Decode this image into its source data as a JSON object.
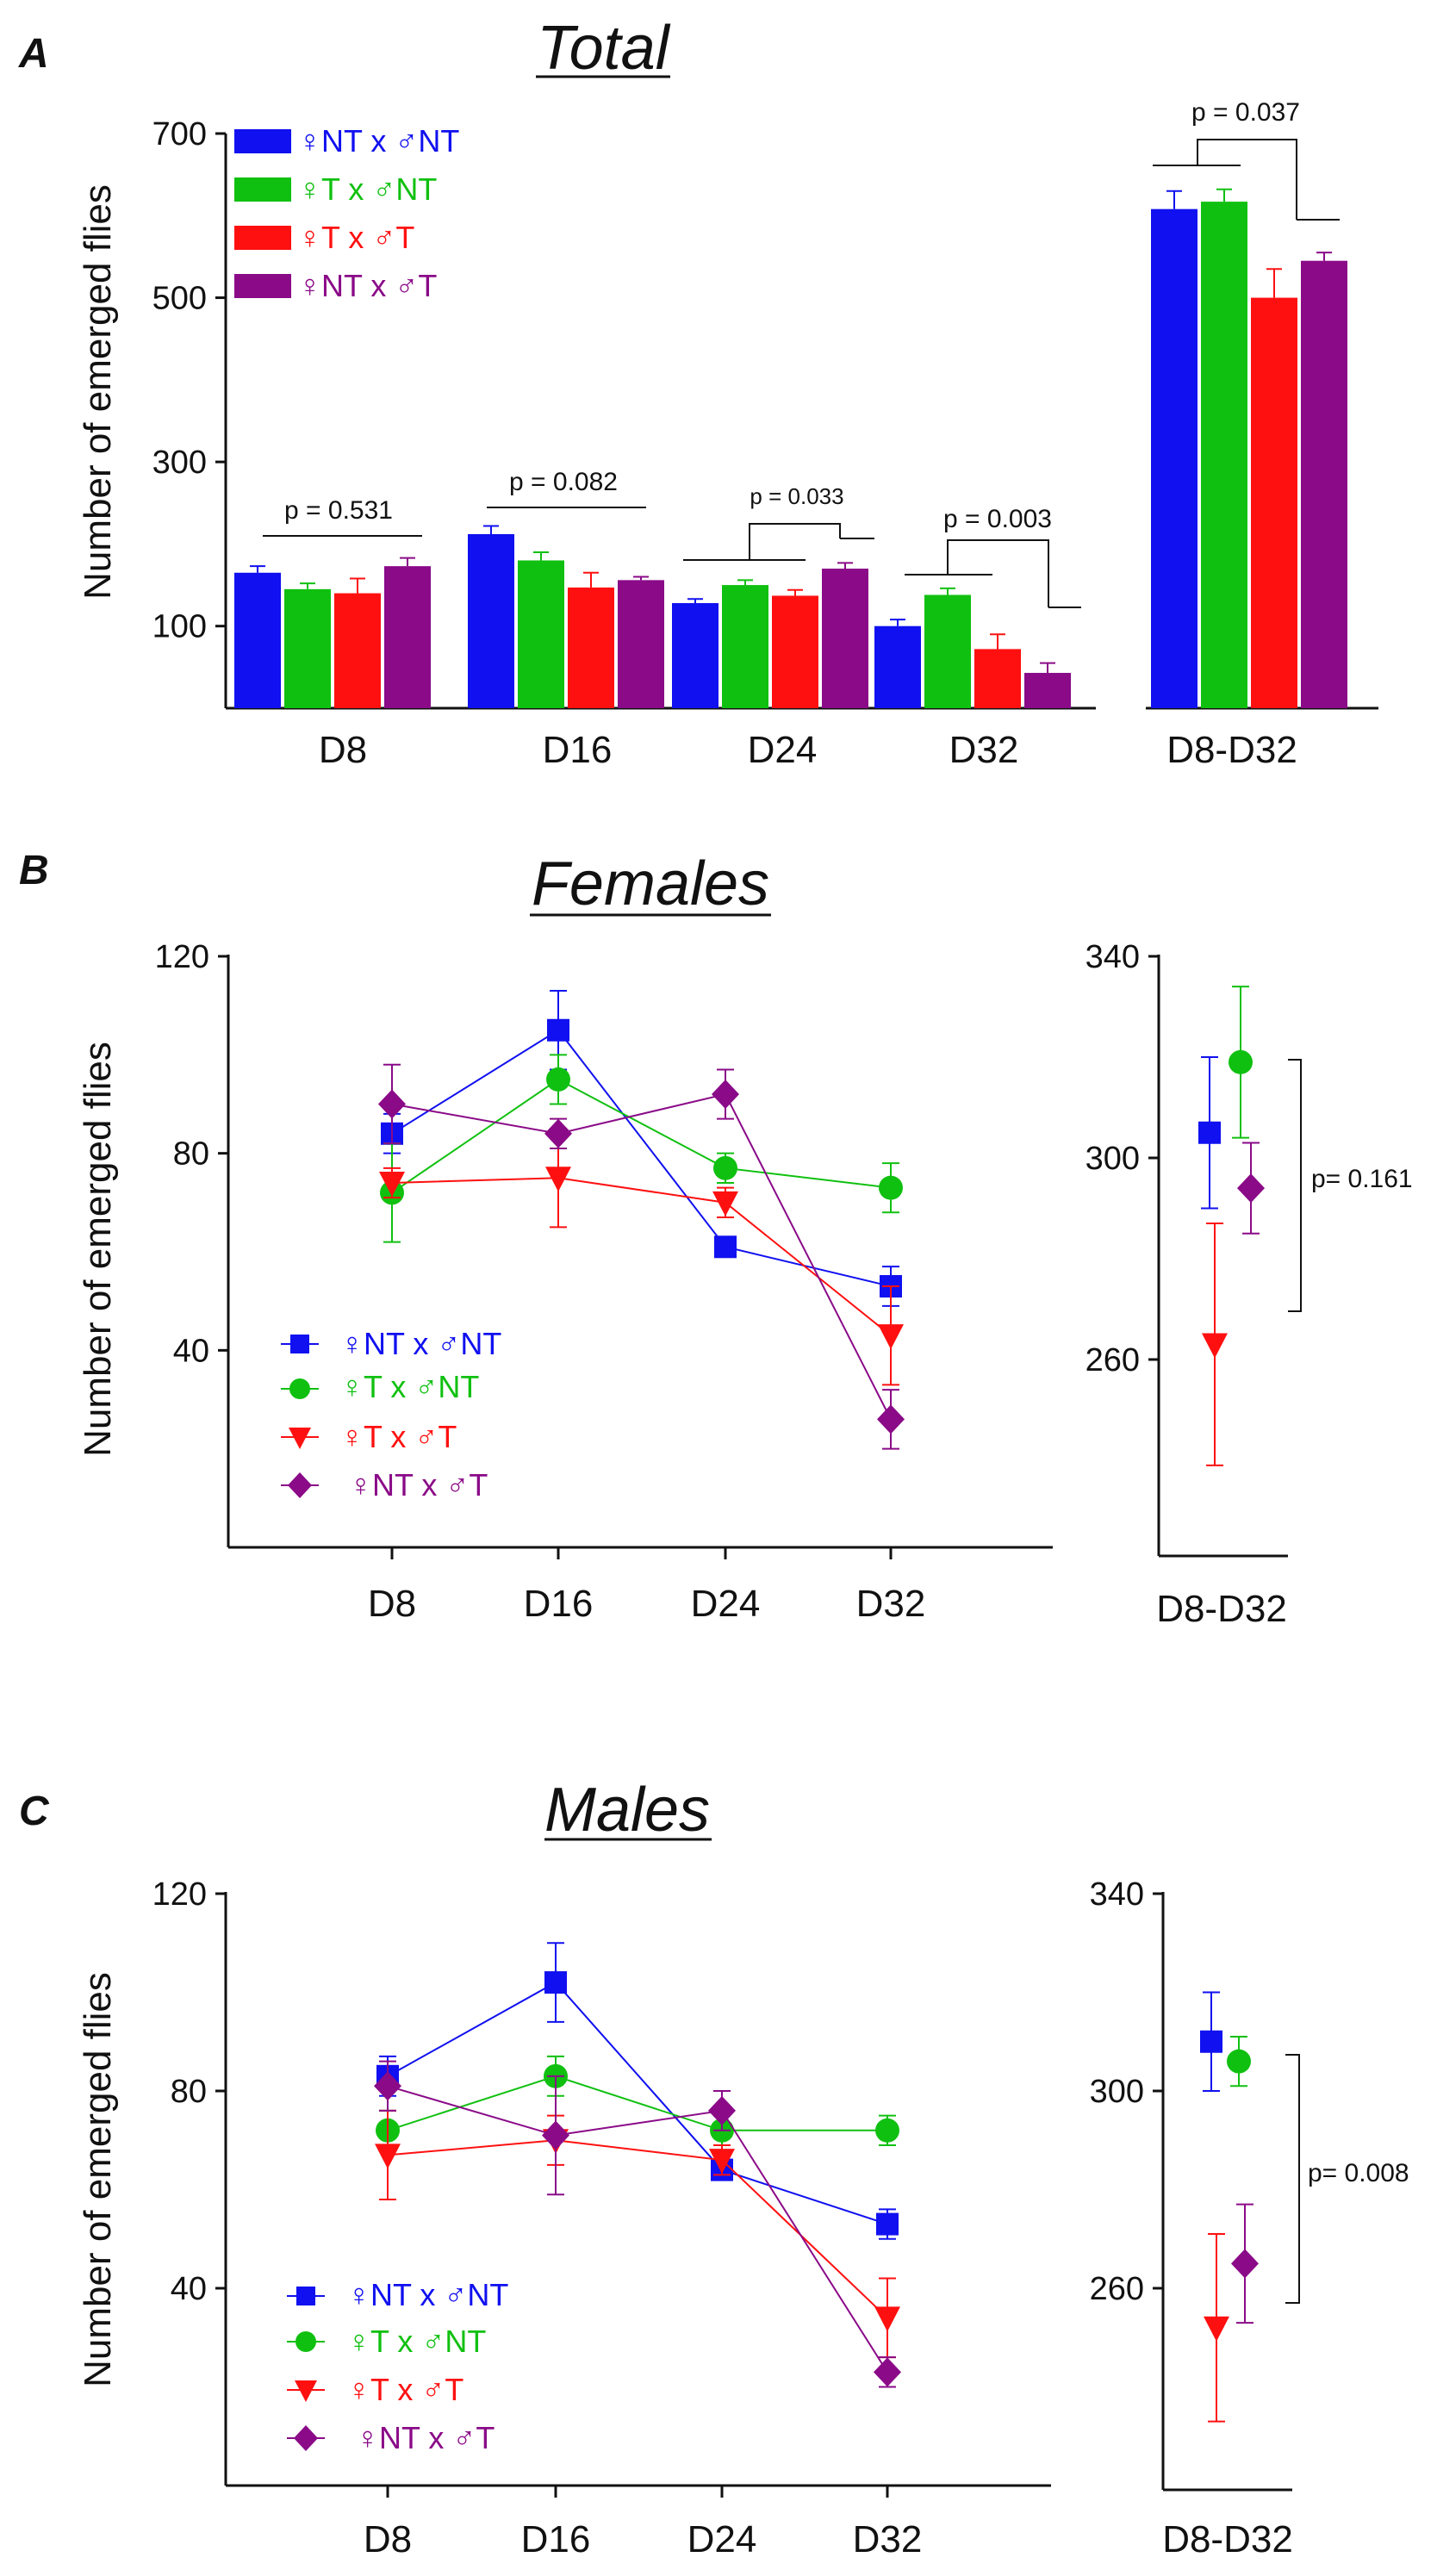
{
  "figure": {
    "panels": [
      {
        "letter": "A",
        "title": "Total"
      },
      {
        "letter": "B",
        "title": "Females"
      },
      {
        "letter": "C",
        "title": "Males"
      }
    ]
  },
  "series": [
    {
      "name": "♀NT x ♂NT",
      "color": "#1010f0",
      "marker": "square"
    },
    {
      "name": "♀T x ♂NT",
      "color": "#10c010",
      "marker": "circle"
    },
    {
      "name": "♀T x ♂T",
      "color": "#ff1010",
      "marker": "triangle-down"
    },
    {
      "name": "♀NT x ♂T",
      "color": "#8a0a88",
      "marker": "diamond"
    }
  ],
  "chart_data": [
    {
      "type": "bar",
      "panel": "A",
      "title": "Total",
      "ylabel": "Number of emerged  flies",
      "xlabel": "",
      "categories": [
        "D8",
        "D16",
        "D24",
        "D32"
      ],
      "yticks": [
        100,
        300,
        500,
        700
      ],
      "ylim": [
        0,
        700
      ],
      "series": [
        {
          "name": "♀NT x ♂NT",
          "values": [
            165,
            212,
            128,
            100
          ],
          "errors": [
            8,
            10,
            5,
            8
          ]
        },
        {
          "name": "♀T x ♂NT",
          "values": [
            145,
            180,
            150,
            138
          ],
          "errors": [
            7,
            10,
            6,
            8
          ]
        },
        {
          "name": "♀T x ♂T",
          "values": [
            140,
            147,
            137,
            72
          ],
          "errors": [
            18,
            18,
            7,
            18
          ]
        },
        {
          "name": "♀NT x ♂T",
          "values": [
            173,
            156,
            170,
            43
          ],
          "errors": [
            10,
            4,
            7,
            12
          ]
        }
      ],
      "pvalues": [
        "p = 0.531",
        "p = 0.082",
        "p = 0.033",
        "p = 0.003"
      ],
      "total": {
        "category": "D8-D32",
        "values": [
          608,
          617,
          500,
          545
        ],
        "errors": [
          22,
          15,
          35,
          10
        ],
        "pvalue": "p = 0.037"
      }
    },
    {
      "type": "line",
      "panel": "B",
      "title": "Females",
      "ylabel": "Number of emerged  flies",
      "categories": [
        "D8",
        "D16",
        "D24",
        "D32"
      ],
      "yticks": [
        40,
        80,
        120
      ],
      "ylim": [
        0,
        120
      ],
      "series": [
        {
          "name": "♀NT x ♂NT",
          "values": [
            84,
            105,
            61,
            53
          ],
          "errors": [
            4,
            8,
            2,
            4
          ]
        },
        {
          "name": "♀T x ♂NT",
          "values": [
            72,
            95,
            77,
            73
          ],
          "errors": [
            10,
            5,
            3,
            5
          ]
        },
        {
          "name": "♀T x ♂T",
          "values": [
            74,
            75,
            70,
            43
          ],
          "errors": [
            3,
            10,
            3,
            10
          ]
        },
        {
          "name": "♀NT x ♂T",
          "values": [
            90,
            84,
            92,
            26
          ],
          "errors": [
            8,
            3,
            5,
            6
          ]
        }
      ],
      "total": {
        "category": "D8-D32",
        "yticks": [
          260,
          300,
          340
        ],
        "ylim": [
          222,
          340
        ],
        "values": [
          305,
          319,
          263,
          294
        ],
        "errors": [
          15,
          15,
          24,
          9
        ],
        "pvalue": "p= 0.161"
      }
    },
    {
      "type": "line",
      "panel": "C",
      "title": "Males",
      "ylabel": "Number of emerged  flies",
      "categories": [
        "D8",
        "D16",
        "D24",
        "D32"
      ],
      "yticks": [
        40,
        80,
        120
      ],
      "ylim": [
        0,
        120
      ],
      "series": [
        {
          "name": "♀NT x ♂NT",
          "values": [
            83,
            102,
            64,
            53
          ],
          "errors": [
            4,
            8,
            2,
            3
          ]
        },
        {
          "name": "♀T x ♂NT",
          "values": [
            72,
            83,
            72,
            72
          ],
          "errors": [
            4,
            4,
            3,
            3
          ]
        },
        {
          "name": "♀T x ♂T",
          "values": [
            67,
            70,
            66,
            34
          ],
          "errors": [
            9,
            5,
            3,
            8
          ]
        },
        {
          "name": "♀NT x ♂T",
          "values": [
            81,
            71,
            76,
            23
          ],
          "errors": [
            5,
            12,
            4,
            3
          ]
        }
      ],
      "total": {
        "category": "D8-D32",
        "yticks": [
          260,
          300,
          340
        ],
        "ylim": [
          222,
          340
        ],
        "values": [
          310,
          306,
          252,
          265
        ],
        "errors": [
          10,
          5,
          19,
          12
        ],
        "pvalue": "p= 0.008"
      }
    }
  ]
}
